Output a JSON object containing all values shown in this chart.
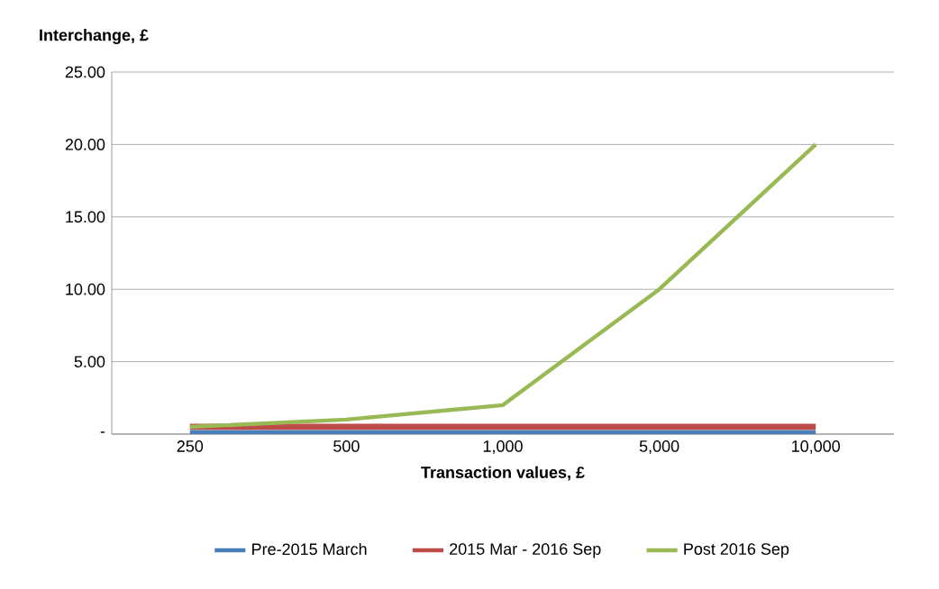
{
  "chart_data": {
    "type": "line",
    "ylabel": "Interchange, £",
    "xlabel": "Transaction values, £",
    "categories": [
      "250",
      "500",
      "1,000",
      "5,000",
      "10,000"
    ],
    "series": [
      {
        "name": "Pre-2015 March",
        "color": "#4a7ebb",
        "values": [
          0,
          0,
          0,
          0,
          0
        ]
      },
      {
        "name": "2015 Mar - 2016 Sep",
        "color": "#be4b48",
        "values": [
          0.5,
          0.5,
          0.5,
          0.5,
          0.5
        ]
      },
      {
        "name": "Post 2016 Sep",
        "color": "#98b954",
        "values": [
          0.5,
          1,
          2,
          10,
          20
        ]
      }
    ],
    "ylim": [
      0,
      25
    ],
    "yticks": [
      {
        "value": 0,
        "label": "-"
      },
      {
        "value": 5,
        "label": "5.00"
      },
      {
        "value": 10,
        "label": "10.00"
      },
      {
        "value": 15,
        "label": "15.00"
      },
      {
        "value": 20,
        "label": "20.00"
      },
      {
        "value": 25,
        "label": "25.00"
      }
    ],
    "grid": "y",
    "legend": "bottom",
    "marker": "none",
    "line_style": "solid"
  }
}
